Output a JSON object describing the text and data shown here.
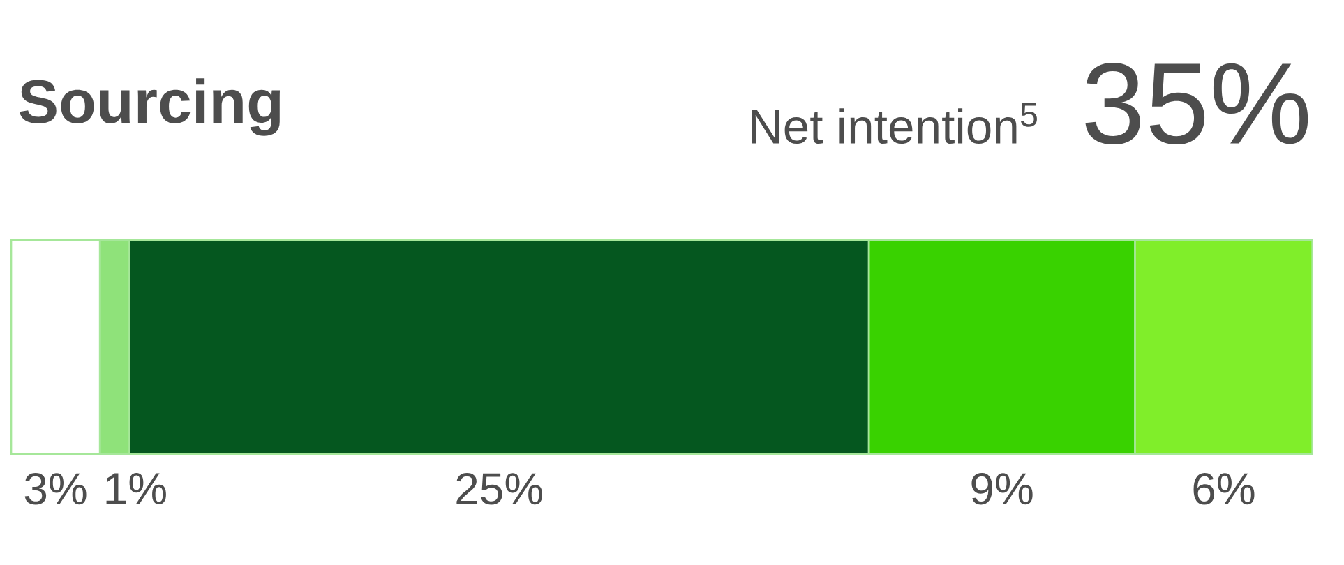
{
  "chart_data": {
    "type": "bar",
    "orientation": "horizontal",
    "stacked": true,
    "title": "Sourcing",
    "annotations": [
      "Net intention$^{5}$",
      "35%"
    ],
    "categories": [
      null
    ],
    "series": [
      {
        "color": "#ffffff",
        "values": [
          3
        ],
        "value_labels": [
          "3%"
        ]
      },
      {
        "color": "#8fe27a",
        "values": [
          1
        ],
        "value_labels": [
          "1%"
        ]
      },
      {
        "color": "#05571f",
        "values": [
          25
        ],
        "value_labels": [
          "25%"
        ]
      },
      {
        "color": "#39d200",
        "values": [
          9
        ],
        "value_labels": [
          "9%"
        ]
      },
      {
        "color": "#80ee2a",
        "values": [
          6
        ],
        "value_labels": [
          "6%"
        ]
      }
    ]
  }
}
